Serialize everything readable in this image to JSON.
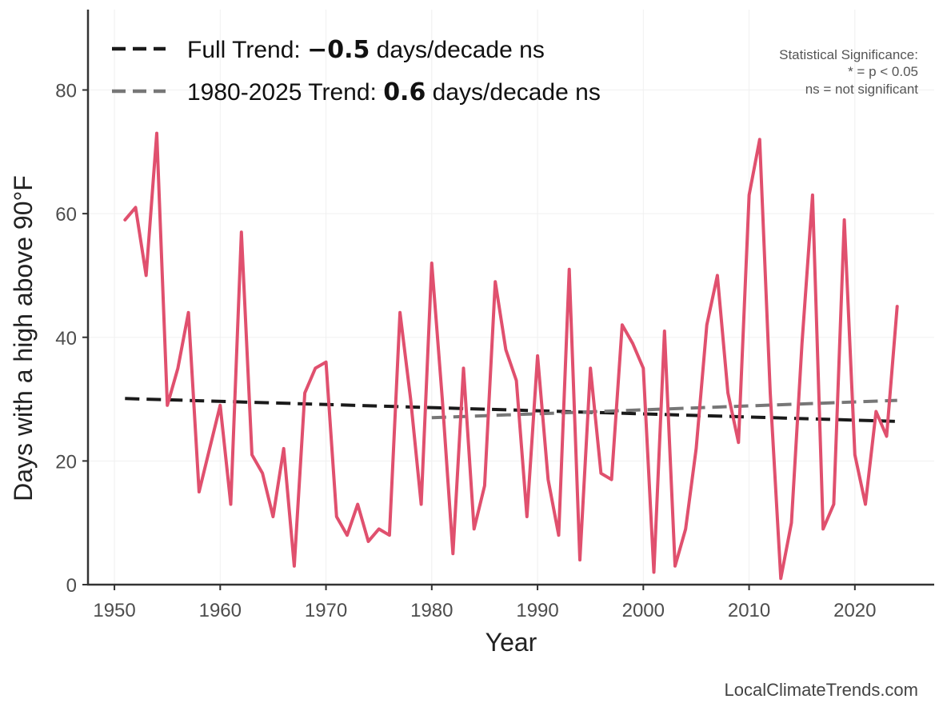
{
  "chart_data": {
    "type": "line",
    "xlabel": "Year",
    "ylabel": "Days with a high above 90°F",
    "xlim": [
      1947.5,
      2027.5
    ],
    "ylim": [
      0,
      93
    ],
    "x_ticks": [
      1950,
      1960,
      1970,
      1980,
      1990,
      2000,
      2010,
      2020
    ],
    "y_ticks": [
      0,
      20,
      40,
      60,
      80
    ],
    "grid": true,
    "series": [
      {
        "name": "Days above 90°F",
        "color": "#e0506e",
        "x": [
          1951,
          1952,
          1953,
          1954,
          1955,
          1956,
          1957,
          1958,
          1959,
          1960,
          1961,
          1962,
          1963,
          1964,
          1965,
          1966,
          1967,
          1968,
          1969,
          1970,
          1971,
          1972,
          1973,
          1974,
          1975,
          1976,
          1977,
          1978,
          1979,
          1980,
          1981,
          1982,
          1983,
          1984,
          1985,
          1986,
          1987,
          1988,
          1989,
          1990,
          1991,
          1992,
          1993,
          1994,
          1995,
          1996,
          1997,
          1998,
          1999,
          2000,
          2001,
          2002,
          2003,
          2004,
          2005,
          2006,
          2007,
          2008,
          2009,
          2010,
          2011,
          2012,
          2013,
          2014,
          2015,
          2016,
          2017,
          2018,
          2019,
          2020,
          2021,
          2022,
          2023,
          2024
        ],
        "values": [
          59,
          61,
          50,
          73,
          29,
          35,
          44,
          15,
          22,
          29,
          13,
          57,
          21,
          18,
          11,
          22,
          3,
          31,
          35,
          36,
          11,
          8,
          13,
          7,
          9,
          8,
          44,
          30,
          13,
          52,
          30,
          5,
          35,
          9,
          16,
          49,
          38,
          33,
          11,
          37,
          17,
          8,
          51,
          4,
          35,
          18,
          17,
          42,
          39,
          35,
          2,
          41,
          3,
          9,
          22,
          42,
          50,
          31,
          23,
          63,
          72,
          31,
          1,
          10,
          39,
          63,
          9,
          13,
          59,
          21,
          13,
          28,
          24,
          45
        ]
      }
    ],
    "trends": [
      {
        "name": "Full Trend",
        "color": "#1a1a1a",
        "x": [
          1951,
          2024
        ],
        "values": [
          30.1,
          26.4
        ]
      },
      {
        "name": "1980-2025 Trend",
        "color": "#777777",
        "x": [
          1980,
          2024
        ],
        "values": [
          27.0,
          29.8
        ]
      }
    ],
    "legend": {
      "position": "top-left",
      "entries": [
        {
          "prefix": "Full Trend: ",
          "value": "−0.5",
          "suffix": " days/decade ns",
          "color": "#1a1a1a"
        },
        {
          "prefix": "1980-2025 Trend: ",
          "value": "0.6",
          "suffix": " days/decade ns",
          "color": "#777777"
        }
      ]
    },
    "annotation": [
      "Statistical Significance:",
      "* = p < 0.05",
      "ns = not significant"
    ],
    "source": "LocalClimateTrends.com"
  }
}
